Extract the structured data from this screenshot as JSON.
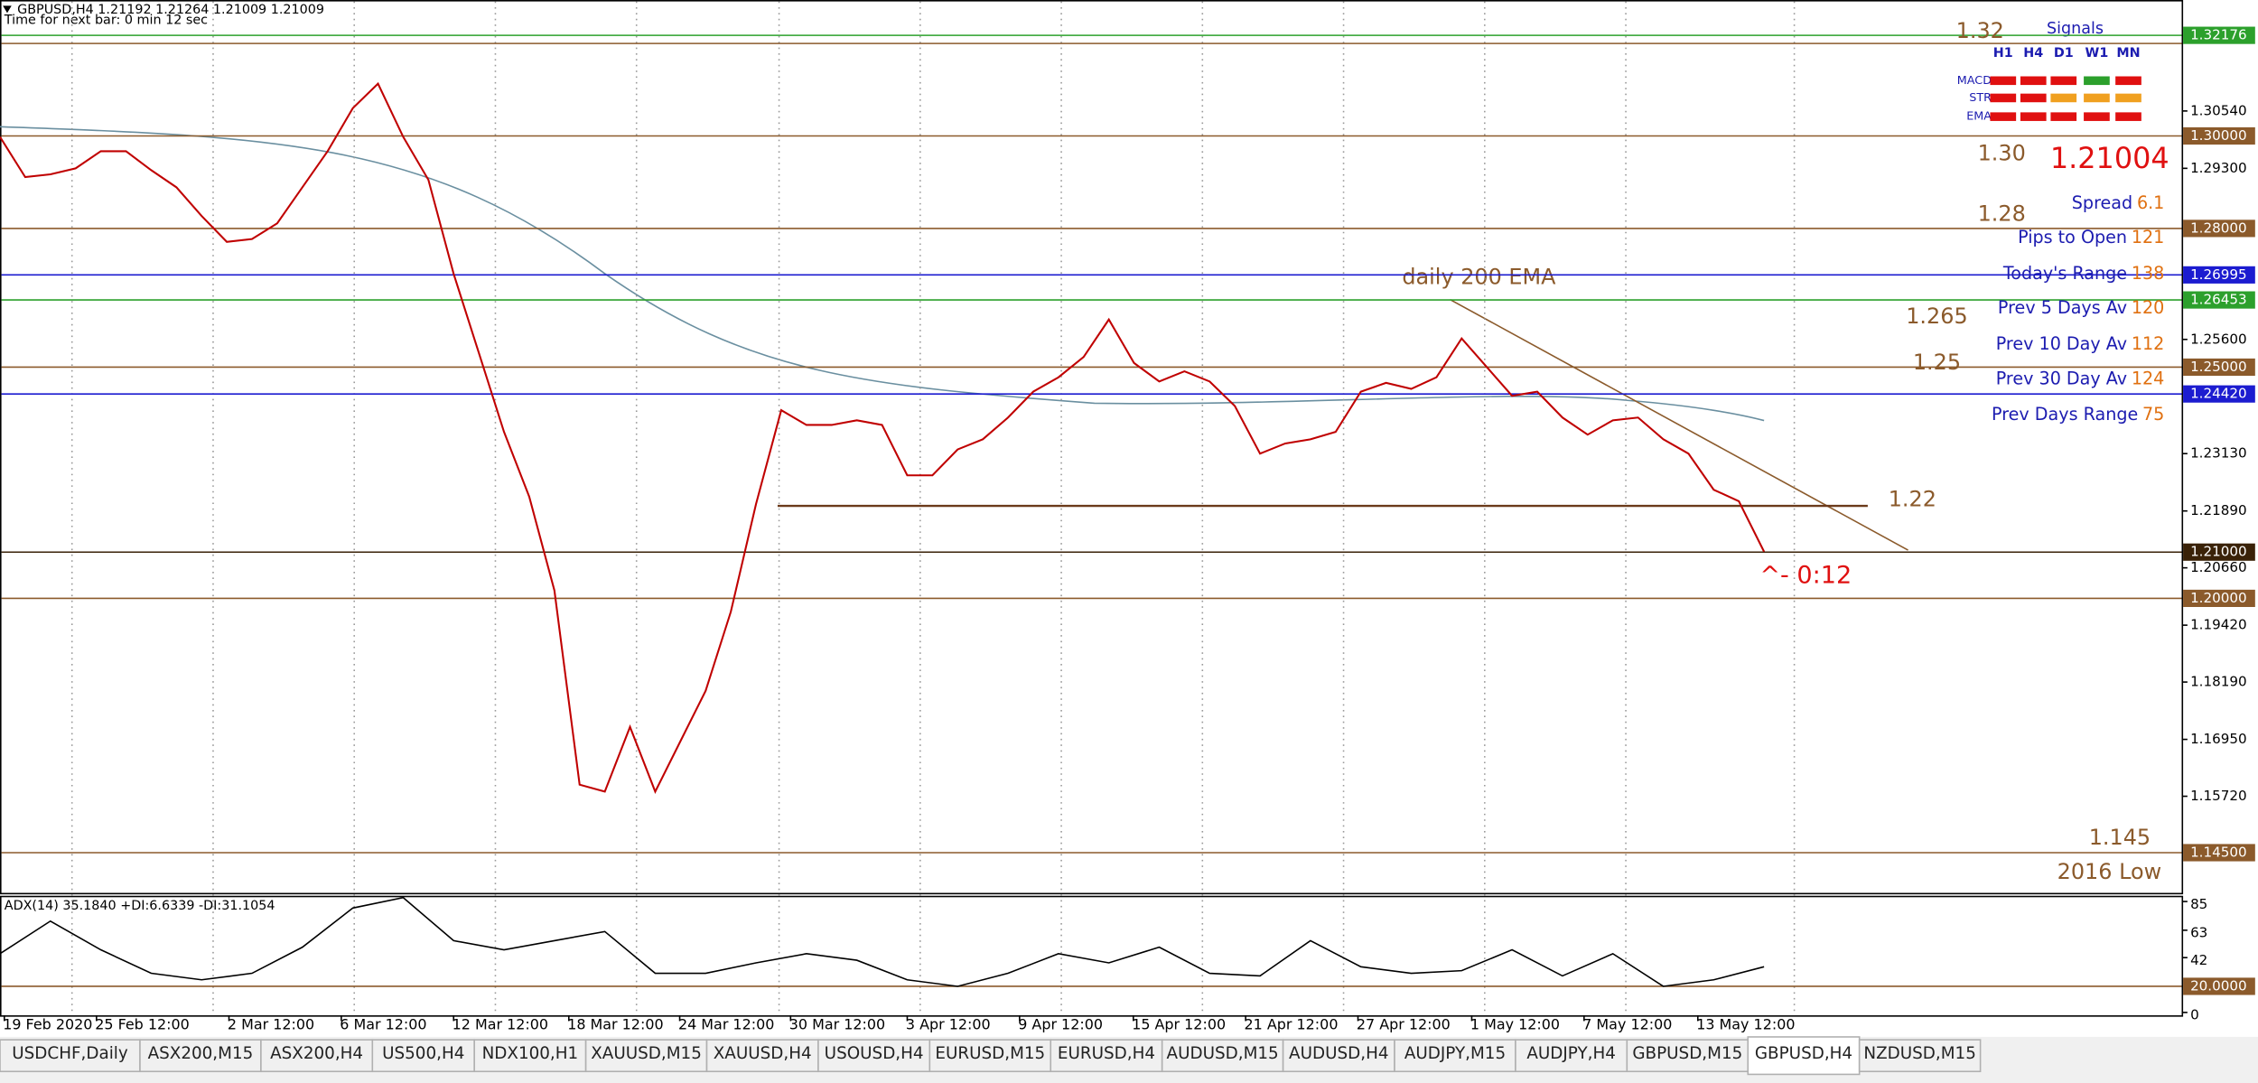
{
  "header": {
    "symbol_line": "GBPUSD,H4  1.21192 1.21264 1.21009 1.21009",
    "timer": "Time for next bar: 0 min 12 sec"
  },
  "price_axis": {
    "ylim": [
      1.1363,
      1.3294
    ],
    "ticks": [
      {
        "value": 1.3054,
        "label": "1.30540"
      },
      {
        "value": 1.293,
        "label": "1.29300"
      },
      {
        "value": 1.256,
        "label": "1.25600"
      },
      {
        "value": 1.2313,
        "label": "1.23130"
      },
      {
        "value": 1.2189,
        "label": "1.21890"
      },
      {
        "value": 1.2066,
        "label": "1.20660"
      },
      {
        "value": 1.1942,
        "label": "1.19420"
      },
      {
        "value": 1.1819,
        "label": "1.18190"
      },
      {
        "value": 1.1695,
        "label": "1.16950"
      },
      {
        "value": 1.1572,
        "label": "1.15720"
      }
    ],
    "levels": [
      {
        "value": 1.32176,
        "label": "1.32176",
        "color": "#2ca02c"
      },
      {
        "value": 1.3,
        "label": "1.30000",
        "color": "#8b5a2b"
      },
      {
        "value": 1.28,
        "label": "1.28000",
        "color": "#8b5a2b"
      },
      {
        "value": 1.26995,
        "label": "1.26995",
        "color": "#1c1cd0"
      },
      {
        "value": 1.26453,
        "label": "1.26453",
        "color": "#2ca02c"
      },
      {
        "value": 1.25,
        "label": "1.25000",
        "color": "#8b5a2b"
      },
      {
        "value": 1.2442,
        "label": "1.24420",
        "color": "#1c1cd0"
      },
      {
        "value": 1.21,
        "label": "1.21000",
        "color": "#3a2208"
      },
      {
        "value": 1.2,
        "label": "1.20000",
        "color": "#8b5a2b"
      },
      {
        "value": 1.145,
        "label": "1.14500",
        "color": "#8b5a2b"
      }
    ]
  },
  "chart": {
    "closes": [
      1.2998,
      1.2911,
      1.2917,
      1.293,
      1.2967,
      1.2967,
      1.2926,
      1.2889,
      1.2827,
      1.2771,
      1.2777,
      1.2811,
      1.2889,
      1.2967,
      1.306,
      1.3113,
      1.2998,
      1.2905,
      1.2702,
      1.2531,
      1.236,
      1.222,
      1.2017,
      1.1597,
      1.1582,
      1.1722,
      1.1582,
      1.1691,
      1.18,
      1.1971,
      1.2204,
      1.2407,
      1.2375,
      1.2375,
      1.2385,
      1.2375,
      1.2266,
      1.2266,
      1.2322,
      1.2344,
      1.2391,
      1.2447,
      1.2478,
      1.2522,
      1.2603,
      1.2509,
      1.2469,
      1.2491,
      1.2469,
      1.2416,
      1.2313,
      1.2335,
      1.2344,
      1.236,
      1.2447,
      1.2466,
      1.2453,
      1.2478,
      1.2562,
      1.25,
      1.2438,
      1.2447,
      1.2391,
      1.2354,
      1.2385,
      1.2391,
      1.2344,
      1.2313,
      1.2235,
      1.221,
      1.2101
    ],
    "color": "#c00000",
    "annotations": [
      {
        "label": "1.32",
        "line": true
      },
      {
        "label": "1.30"
      },
      {
        "label": "1.28"
      },
      {
        "label": "1.265"
      },
      {
        "label": "1.25"
      },
      {
        "label": "1.22",
        "line": true
      },
      {
        "label": "1.145"
      }
    ],
    "low_note": "2016 Low",
    "ema_note": "daily 200 EMA",
    "countdown": "^- 0:12",
    "price": "1.21004"
  },
  "signals": {
    "title": "Signals",
    "columns": [
      "H1",
      "H4",
      "D1",
      "W1",
      "MN"
    ],
    "rows": [
      {
        "name": "MACD",
        "colors": [
          "#e01010",
          "#e01010",
          "#e01010",
          "#2ca02c",
          "#e01010"
        ]
      },
      {
        "name": "STR",
        "colors": [
          "#e01010",
          "#e01010",
          "#f0a020",
          "#f0a020",
          "#f0a020"
        ]
      },
      {
        "name": "EMA",
        "colors": [
          "#e01010",
          "#e01010",
          "#e01010",
          "#e01010",
          "#e01010"
        ]
      }
    ]
  },
  "info": [
    {
      "label": "Spread",
      "value": 6.1
    },
    {
      "label": "Pips to Open",
      "value": 121
    },
    {
      "label": "Today's Range",
      "value": 138
    },
    {
      "label": "Prev 5 Days Av",
      "value": 120
    },
    {
      "label": "Prev 10 Day Av",
      "value": 112
    },
    {
      "label": "Prev 30 Day Av",
      "value": 124
    },
    {
      "label": "Prev Days Range",
      "value": 75
    }
  ],
  "indicator": {
    "label": "ADX(14) 35.1840 +DI:6.6339 -DI:31.1054",
    "ylim": [
      -2.2,
      89.4
    ],
    "ticks": [
      85,
      63,
      42,
      {
        "value": 20,
        "label": "20.0000"
      },
      0
    ],
    "values": [
      45,
      70,
      48,
      30,
      25,
      30,
      50,
      80,
      88,
      55,
      48,
      55,
      62,
      30,
      30,
      38,
      45,
      40,
      25,
      20,
      30,
      45,
      38,
      50,
      30,
      28,
      55,
      35,
      30,
      32,
      48,
      28,
      45,
      20,
      25,
      35
    ]
  },
  "time_axis": [
    "19 Feb 2020",
    "25 Feb 12:00",
    "2 Mar 12:00",
    "6 Mar 12:00",
    "12 Mar 12:00",
    "18 Mar 12:00",
    "24 Mar 12:00",
    "30 Mar 12:00",
    "3 Apr 12:00",
    "9 Apr 12:00",
    "15 Apr 12:00",
    "21 Apr 12:00",
    "27 Apr 12:00",
    "1 May 12:00",
    "7 May 12:00",
    "13 May 12:00"
  ],
  "tabs": {
    "items": [
      "USDCHF,Daily",
      "ASX200,M15",
      "ASX200,H4",
      "US500,H4",
      "NDX100,H1",
      "XAUUSD,M15",
      "XAUUSD,H4",
      "USOUSD,H4",
      "EURUSD,M15",
      "EURUSD,H4",
      "AUDUSD,M15",
      "AUDUSD,H4",
      "AUDJPY,M15",
      "AUDJPY,H4",
      "GBPUSD,M15",
      "GBPUSD,H4",
      "NZDUSD,M15"
    ],
    "active": 15
  }
}
